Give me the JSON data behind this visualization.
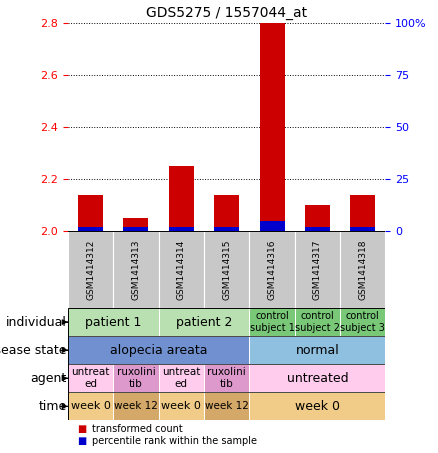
{
  "title": "GDS5275 / 1557044_at",
  "samples": [
    "GSM1414312",
    "GSM1414313",
    "GSM1414314",
    "GSM1414315",
    "GSM1414316",
    "GSM1414317",
    "GSM1414318"
  ],
  "transformed_counts": [
    2.14,
    2.05,
    2.25,
    2.14,
    2.8,
    2.1,
    2.14
  ],
  "percentile_ranks": [
    2,
    2,
    2,
    2,
    5,
    2,
    2
  ],
  "ylim_left": [
    2.0,
    2.8
  ],
  "yticks_left": [
    2.0,
    2.2,
    2.4,
    2.6,
    2.8
  ],
  "ylim_right": [
    0,
    100
  ],
  "yticks_right": [
    0,
    25,
    50,
    75,
    100
  ],
  "bar_color_red": "#cc0000",
  "bar_color_blue": "#0000cc",
  "annotations": {
    "individual": {
      "label": "individual",
      "groups": [
        {
          "span": [
            0,
            1
          ],
          "text": "patient 1",
          "color": "#b8e0b0",
          "fontsize": 9
        },
        {
          "span": [
            2,
            3
          ],
          "text": "patient 2",
          "color": "#b8e0b0",
          "fontsize": 9
        },
        {
          "span": [
            4,
            4
          ],
          "text": "control\nsubject 1",
          "color": "#78c878",
          "fontsize": 7
        },
        {
          "span": [
            5,
            5
          ],
          "text": "control\nsubject 2",
          "color": "#78c878",
          "fontsize": 7
        },
        {
          "span": [
            6,
            6
          ],
          "text": "control\nsubject 3",
          "color": "#78c878",
          "fontsize": 7
        }
      ]
    },
    "disease_state": {
      "label": "disease state",
      "groups": [
        {
          "span": [
            0,
            3
          ],
          "text": "alopecia areata",
          "color": "#7090d0",
          "fontsize": 9
        },
        {
          "span": [
            4,
            6
          ],
          "text": "normal",
          "color": "#90c0e0",
          "fontsize": 9
        }
      ]
    },
    "agent": {
      "label": "agent",
      "groups": [
        {
          "span": [
            0,
            0
          ],
          "text": "untreat\ned",
          "color": "#ffccee",
          "fontsize": 7.5
        },
        {
          "span": [
            1,
            1
          ],
          "text": "ruxolini\ntib",
          "color": "#dd99cc",
          "fontsize": 7.5
        },
        {
          "span": [
            2,
            2
          ],
          "text": "untreat\ned",
          "color": "#ffccee",
          "fontsize": 7.5
        },
        {
          "span": [
            3,
            3
          ],
          "text": "ruxolini\ntib",
          "color": "#dd99cc",
          "fontsize": 7.5
        },
        {
          "span": [
            4,
            6
          ],
          "text": "untreated",
          "color": "#ffccee",
          "fontsize": 9
        }
      ]
    },
    "time": {
      "label": "time",
      "groups": [
        {
          "span": [
            0,
            0
          ],
          "text": "week 0",
          "color": "#f0cc88",
          "fontsize": 8
        },
        {
          "span": [
            1,
            1
          ],
          "text": "week 12",
          "color": "#d4a868",
          "fontsize": 7.5
        },
        {
          "span": [
            2,
            2
          ],
          "text": "week 0",
          "color": "#f0cc88",
          "fontsize": 8
        },
        {
          "span": [
            3,
            3
          ],
          "text": "week 12",
          "color": "#d4a868",
          "fontsize": 7.5
        },
        {
          "span": [
            4,
            6
          ],
          "text": "week 0",
          "color": "#f0cc88",
          "fontsize": 9
        }
      ]
    }
  },
  "row_labels": [
    "individual",
    "disease state",
    "agent",
    "time"
  ],
  "legend": [
    {
      "color": "#cc0000",
      "label": "transformed count"
    },
    {
      "color": "#0000cc",
      "label": "percentile rank within the sample"
    }
  ],
  "sample_box_color": "#c8c8c8",
  "bg_color": "#ffffff"
}
